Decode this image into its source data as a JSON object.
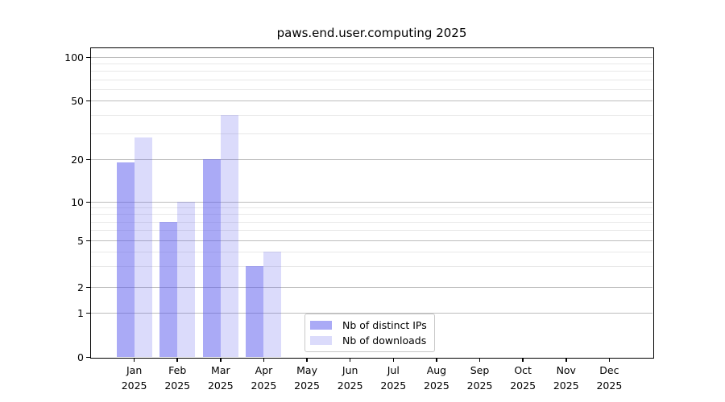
{
  "chart_data": {
    "type": "bar",
    "title": "paws.end.user.computing 2025",
    "categories": [
      {
        "month": "Jan",
        "year": "2025"
      },
      {
        "month": "Feb",
        "year": "2025"
      },
      {
        "month": "Mar",
        "year": "2025"
      },
      {
        "month": "Apr",
        "year": "2025"
      },
      {
        "month": "May",
        "year": "2025"
      },
      {
        "month": "Jun",
        "year": "2025"
      },
      {
        "month": "Jul",
        "year": "2025"
      },
      {
        "month": "Aug",
        "year": "2025"
      },
      {
        "month": "Sep",
        "year": "2025"
      },
      {
        "month": "Oct",
        "year": "2025"
      },
      {
        "month": "Nov",
        "year": "2025"
      },
      {
        "month": "Dec",
        "year": "2025"
      }
    ],
    "series": [
      {
        "name": "Nb of distinct IPs",
        "color": "#5555EE80",
        "values": [
          19,
          7,
          20,
          3,
          0,
          0,
          0,
          0,
          0,
          0,
          0,
          0
        ]
      },
      {
        "name": "Nb of downloads",
        "color": "#5555EE36",
        "values": [
          28,
          10,
          40,
          4,
          0,
          0,
          0,
          0,
          0,
          0,
          0,
          0
        ]
      }
    ],
    "yscale": "symlog",
    "yticks": [
      0,
      1,
      2,
      5,
      10,
      20,
      50,
      100
    ],
    "yminorticks": [
      3,
      4,
      6,
      7,
      8,
      9,
      30,
      40,
      60,
      70,
      80,
      90
    ],
    "ylim": [
      0,
      115
    ],
    "xlabel": "",
    "ylabel": "",
    "grid": "horizontal major and minor",
    "legend_position": "lower center inside plot",
    "colors": {
      "bar_distinct_ips": "#aaaaf7",
      "bar_downloads": "#dbdbf9",
      "grid_major": "#bdbdbd",
      "grid_minor": "#e8e8e8",
      "spine": "#000000"
    }
  }
}
